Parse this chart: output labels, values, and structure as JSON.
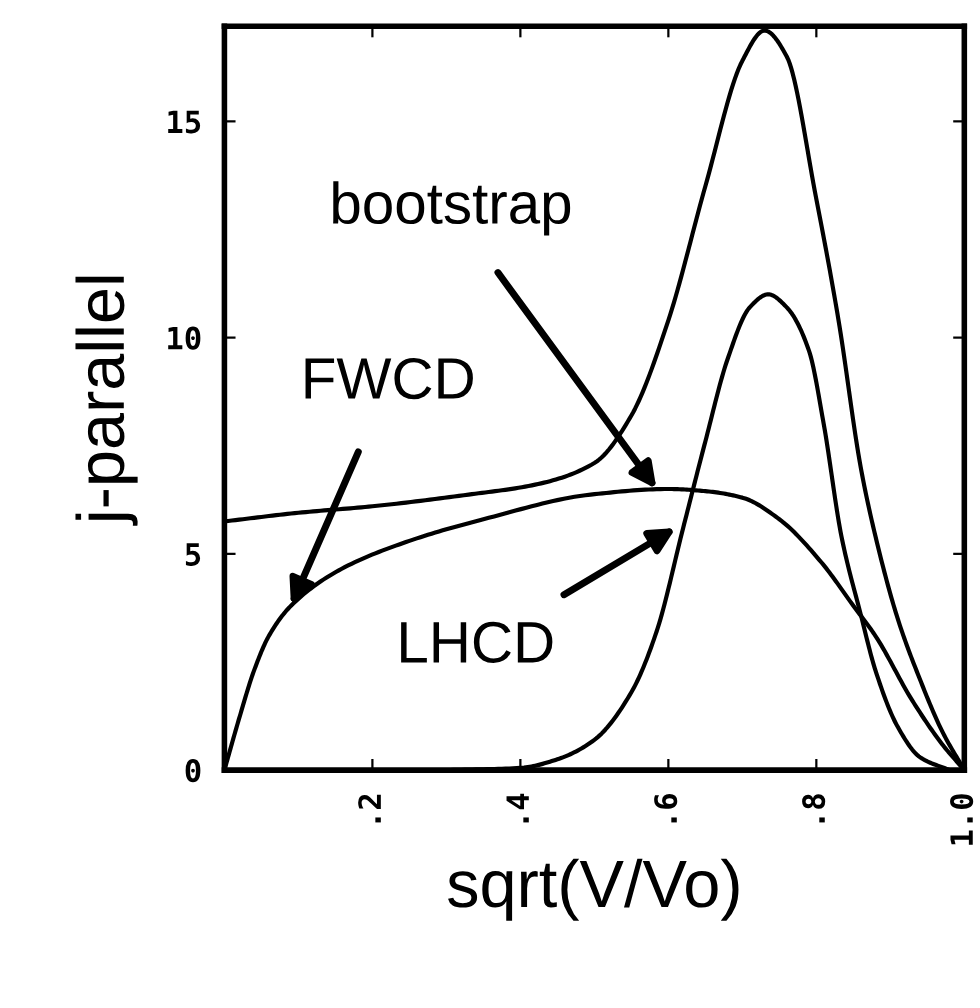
{
  "chart_data": {
    "type": "line",
    "xlabel": "sqrt(V/Vo)",
    "ylabel": "j-parallel",
    "xlim": [
      0,
      1
    ],
    "ylim": [
      0,
      17.2
    ],
    "xticks": [
      {
        "value": 0.2,
        "label": ".2"
      },
      {
        "value": 0.4,
        "label": ".4"
      },
      {
        "value": 0.6,
        "label": ".6"
      },
      {
        "value": 0.8,
        "label": ".8"
      },
      {
        "value": 1.0,
        "label": "1.0"
      }
    ],
    "yticks": [
      0,
      5,
      10,
      15
    ],
    "grid": false,
    "legend": false,
    "series": [
      {
        "color": "#000000",
        "x": [
          0,
          0.1,
          0.2,
          0.33,
          0.42,
          0.5,
          0.55,
          0.6,
          0.65,
          0.7,
          0.73,
          0.76,
          0.8,
          0.83,
          0.86,
          0.88,
          0.91,
          0.94,
          0.97,
          1.0
        ],
        "values": [
          5.75,
          5.95,
          6.1,
          6.37,
          6.6,
          7.1,
          8.2,
          10.4,
          13.5,
          16.4,
          17.1,
          16.5,
          13.2,
          10.4,
          7.0,
          5.4,
          3.5,
          2.1,
          0.9,
          0
        ]
      },
      {
        "color": "#000000",
        "x": [
          0,
          0.02,
          0.04,
          0.06,
          0.09,
          0.158,
          0.25,
          0.35,
          0.495,
          0.6,
          0.65,
          0.7,
          0.75,
          0.807,
          0.85,
          0.88,
          0.93,
          0.97,
          1.0
        ],
        "values": [
          0,
          1.2,
          2.3,
          3.1,
          3.8,
          4.65,
          5.3,
          5.8,
          6.37,
          6.5,
          6.45,
          6.3,
          5.8,
          4.8,
          3.8,
          3.1,
          1.6,
          0.6,
          0
        ]
      },
      {
        "color": "#000000",
        "x": [
          0.3,
          0.4,
          0.45,
          0.5,
          0.55,
          0.584,
          0.62,
          0.65,
          0.68,
          0.71,
          0.735,
          0.76,
          0.79,
          0.81,
          0.834,
          0.86,
          0.88,
          0.91,
          0.94,
          0.98
        ],
        "values": [
          0,
          0.05,
          0.25,
          0.7,
          1.8,
          3.2,
          5.6,
          7.6,
          9.5,
          10.7,
          11.0,
          10.7,
          9.7,
          8.0,
          5.4,
          3.6,
          2.3,
          1.0,
          0.3,
          0
        ]
      }
    ],
    "annotations": [
      {
        "text": "bootstrap",
        "x": 0.584,
        "y": 6.5
      },
      {
        "text": "FWCD",
        "x": 0.09,
        "y": 3.8
      },
      {
        "text": "LHCD",
        "x": 0.61,
        "y": 5.6
      }
    ]
  }
}
